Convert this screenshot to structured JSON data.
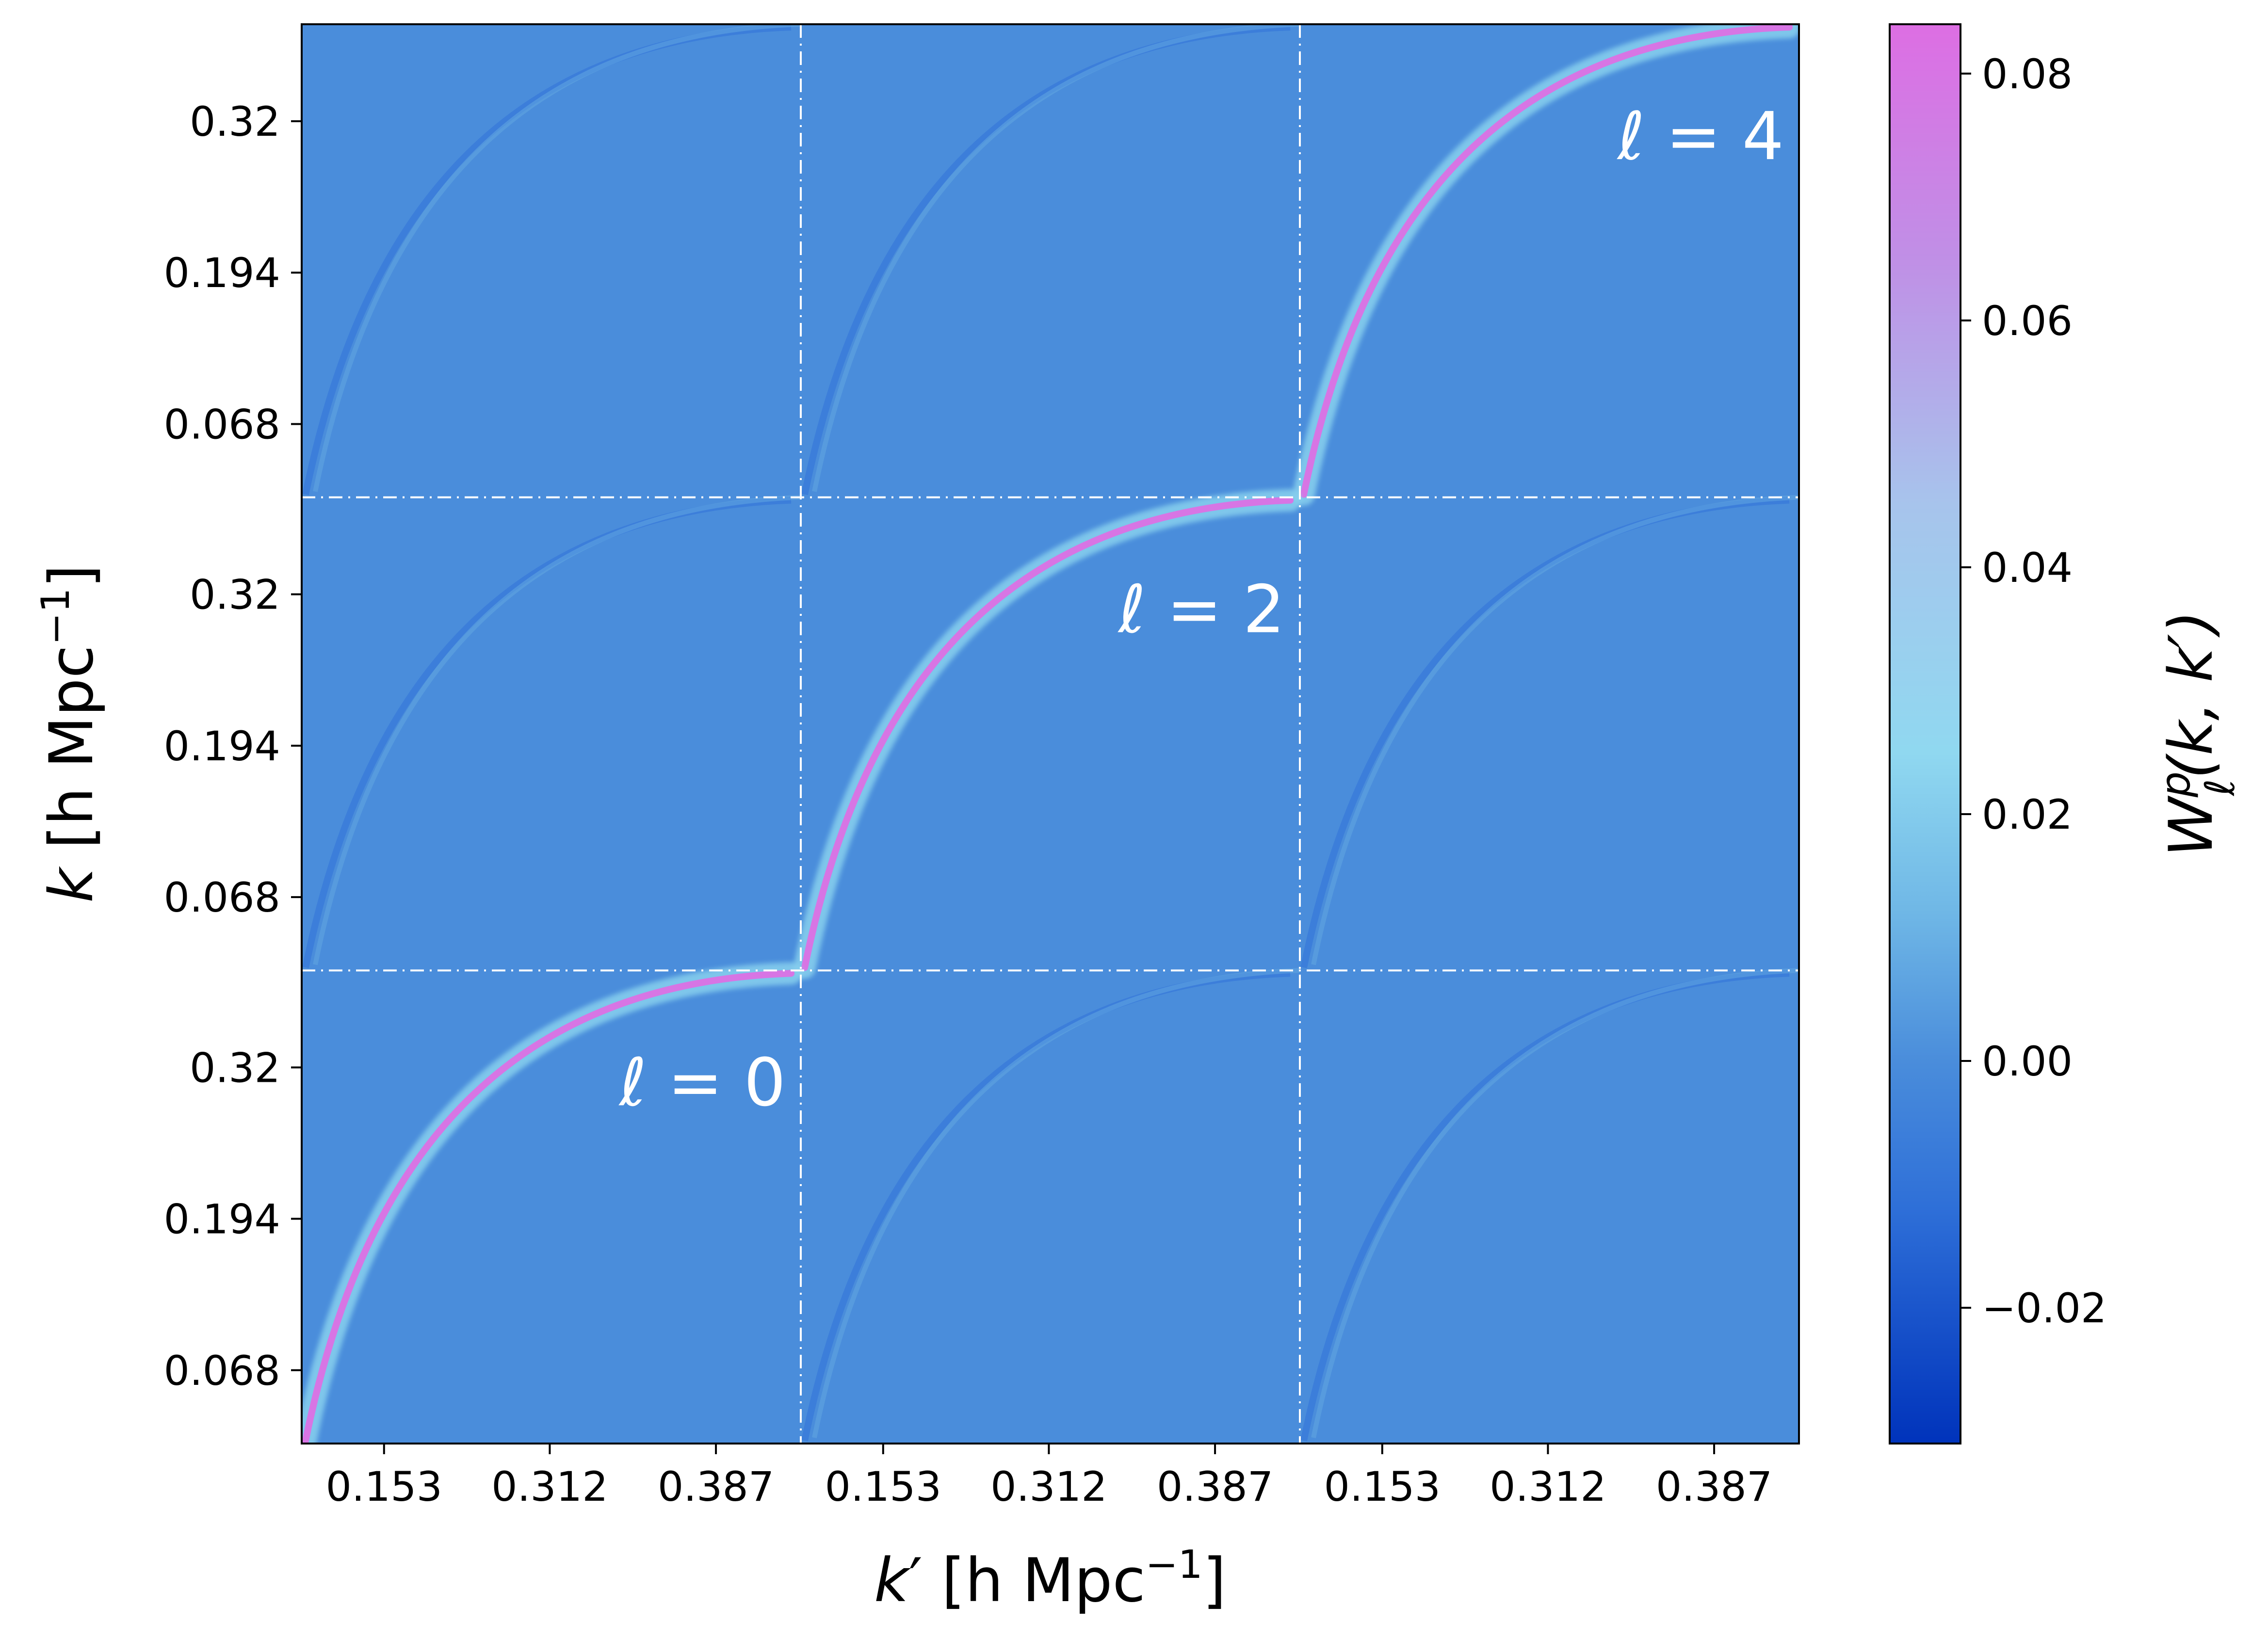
{
  "chart_data": {
    "type": "heatmap",
    "title": "",
    "xlabel": {
      "prefix": "k",
      "prime": "′",
      "unit": " [h Mpc",
      "exp": "−1",
      "close": "]"
    },
    "ylabel": {
      "prefix": "k",
      "unit": " [h Mpc",
      "exp": "−1",
      "close": "]"
    },
    "grid": "3x3 block matrix of multipole window functions",
    "x_tick_labels": [
      "0.153",
      "0.312",
      "0.387"
    ],
    "y_tick_labels": [
      "0.32",
      "0.194",
      "0.068"
    ],
    "panel_labels": [
      {
        "text": "ℓ = 0",
        "block_row": 2,
        "block_col": 0
      },
      {
        "text": "ℓ = 2",
        "block_row": 1,
        "block_col": 1
      },
      {
        "text": "ℓ = 4",
        "block_row": 0,
        "block_col": 2
      }
    ],
    "colorbar": {
      "label_main": "W",
      "label_sup": "p",
      "label_sub": "ℓ",
      "label_args": "(k, k′)",
      "min": -0.031,
      "max": 0.084,
      "ticks": [
        -0.02,
        0.0,
        0.02,
        0.04,
        0.06,
        0.08
      ],
      "tick_labels": [
        "−0.02",
        "0.00",
        "0.02",
        "0.04",
        "0.06",
        "0.08"
      ],
      "colors": [
        "#0033bb",
        "#2e6fd8",
        "#4a8ddb",
        "#6fb7e6",
        "#90d8f0",
        "#a7c4ec",
        "#c08fe6",
        "#dd6ee3"
      ]
    },
    "background_value": 0.0,
    "diagonal_peak_value": 0.08,
    "offdiag_value": -0.01,
    "colors": {
      "separator": "#ffffff",
      "frame": "#000000"
    }
  }
}
